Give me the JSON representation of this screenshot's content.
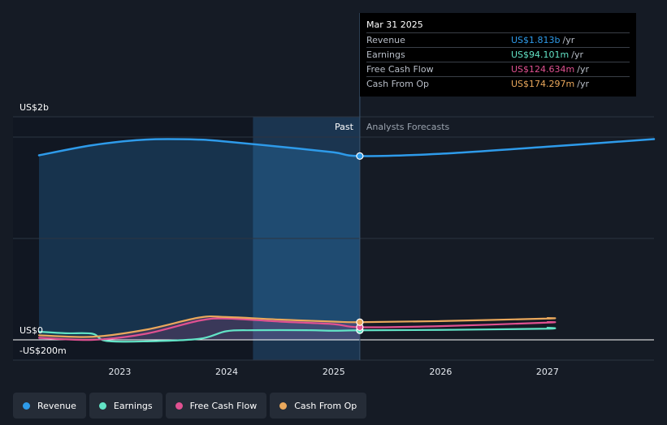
{
  "tooltip": {
    "date": "Mar 31 2025",
    "rows": [
      {
        "label": "Revenue",
        "value": "US$1.813b",
        "unit": "/yr",
        "color": "#2e9bea"
      },
      {
        "label": "Earnings",
        "value": "US$94.101m",
        "unit": "/yr",
        "color": "#62e3c6"
      },
      {
        "label": "Free Cash Flow",
        "value": "US$124.634m",
        "unit": "/yr",
        "color": "#e05191"
      },
      {
        "label": "Cash From Op",
        "value": "US$174.297m",
        "unit": "/yr",
        "color": "#eaa85c"
      }
    ]
  },
  "regions": {
    "past": "Past",
    "forecast": "Analysts Forecasts"
  },
  "legend": [
    {
      "label": "Revenue",
      "color": "#2e9bea"
    },
    {
      "label": "Earnings",
      "color": "#62e3c6"
    },
    {
      "label": "Free Cash Flow",
      "color": "#e05191"
    },
    {
      "label": "Cash From Op",
      "color": "#eaa85c"
    }
  ],
  "chart_data": {
    "type": "line",
    "y_tick_labels": [
      "US$2b",
      "US$0",
      "-US$200m"
    ],
    "y_tick_values": [
      2000,
      0,
      -200
    ],
    "ylim": [
      -200,
      2200
    ],
    "xlim": [
      "2022-03-31",
      "2027-12-31"
    ],
    "x_tick_labels": [
      "2023",
      "2024",
      "2025",
      "2026",
      "2027"
    ],
    "x_tick_values": [
      "2023-01-01",
      "2024-01-01",
      "2025-01-01",
      "2026-01-01",
      "2027-01-01"
    ],
    "divider_date": "2025-03-31",
    "highlight_start": "2024-03-31",
    "series": [
      {
        "name": "Revenue",
        "color": "#2e9bea",
        "area": true,
        "x": [
          "2022-03-31",
          "2022-09-30",
          "2023-03-31",
          "2023-09-30",
          "2024-01-01",
          "2024-06-30",
          "2024-12-31",
          "2025-03-31",
          "2025-12-31",
          "2026-12-31",
          "2027-12-31"
        ],
        "y": [
          1820,
          1920,
          1975,
          1975,
          1955,
          1905,
          1850,
          1813,
          1835,
          1905,
          1980
        ]
      },
      {
        "name": "Earnings",
        "color": "#62e3c6",
        "x": [
          "2022-03-31",
          "2022-06-30",
          "2022-09-30",
          "2022-11-15",
          "2023-03-31",
          "2023-09-30",
          "2023-12-31",
          "2024-03-31",
          "2024-09-30",
          "2024-12-31",
          "2025-03-31",
          "2025-12-31",
          "2026-12-31",
          "2027-01-01"
        ],
        "y": [
          80,
          65,
          60,
          -10,
          -15,
          10,
          85,
          95,
          95,
          90,
          94,
          98,
          110,
          120
        ]
      },
      {
        "name": "Free Cash Flow",
        "color": "#e05191",
        "x": [
          "2022-03-31",
          "2022-09-30",
          "2023-03-31",
          "2023-09-30",
          "2024-01-01",
          "2024-06-30",
          "2024-12-31",
          "2025-03-31",
          "2025-12-31",
          "2026-12-31",
          "2027-01-01"
        ],
        "y": [
          20,
          0,
          60,
          190,
          210,
          180,
          155,
          124.634,
          135,
          170,
          175
        ]
      },
      {
        "name": "Cash From Op",
        "color": "#eaa85c",
        "x": [
          "2022-03-31",
          "2022-09-30",
          "2023-03-31",
          "2023-09-30",
          "2024-01-01",
          "2024-06-30",
          "2024-12-31",
          "2025-03-31",
          "2025-12-31",
          "2026-12-31",
          "2027-01-01"
        ],
        "y": [
          45,
          30,
          100,
          220,
          225,
          200,
          180,
          174.297,
          185,
          210,
          215
        ]
      }
    ]
  }
}
